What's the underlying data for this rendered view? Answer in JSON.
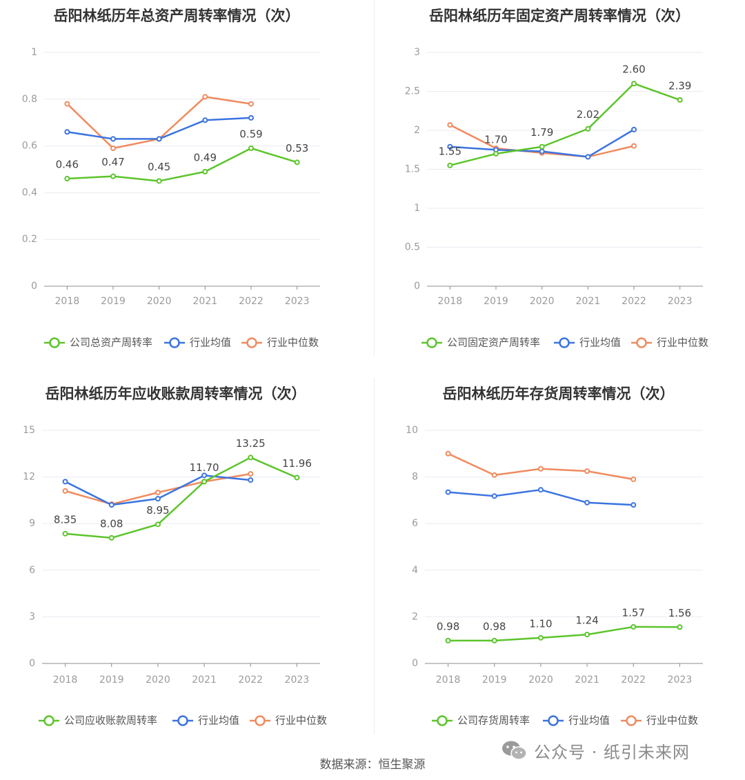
{
  "footer": {
    "source": "数据来源：恒生聚源"
  },
  "watermark": {
    "text": "公众号 · 纸引未来网",
    "icon": "wechat-icon"
  },
  "colors": {
    "company": "#5bc42a",
    "avg": "#3a73e0",
    "median": "#f08a5d",
    "grid": "#e8ebf2",
    "axis": "#9a9a9a",
    "title": "#333333"
  },
  "chart_data": [
    {
      "type": "line",
      "title": "岳阳林纸历年总资产周转率情况（次）",
      "categories": [
        "2018",
        "2019",
        "2020",
        "2021",
        "2022",
        "2023"
      ],
      "ylim": [
        0,
        1
      ],
      "yticks": [
        "0",
        "0.2",
        "0.4",
        "0.6",
        "0.8",
        "1"
      ],
      "ytick_values": [
        0,
        0.2,
        0.4,
        0.6,
        0.8,
        1
      ],
      "series": [
        {
          "name": "公司总资产周转率",
          "values": [
            0.46,
            0.47,
            0.45,
            0.49,
            0.59,
            0.53
          ],
          "labels": [
            "0.46",
            "0.47",
            "0.45",
            "0.49",
            "0.59",
            "0.53"
          ]
        },
        {
          "name": "行业均值",
          "values": [
            0.66,
            0.63,
            0.63,
            0.71,
            0.72,
            null
          ]
        },
        {
          "name": "行业中位数",
          "values": [
            0.78,
            0.59,
            0.63,
            0.81,
            0.78,
            null
          ]
        }
      ],
      "legend": "bottom",
      "grid": true
    },
    {
      "type": "line",
      "title": "岳阳林纸历年固定资产周转率情况（次）",
      "categories": [
        "2018",
        "2019",
        "2020",
        "2021",
        "2022",
        "2023"
      ],
      "ylim": [
        0,
        3
      ],
      "yticks": [
        "0",
        "0.5",
        "1",
        "1.5",
        "2",
        "2.5",
        "3"
      ],
      "ytick_values": [
        0,
        0.5,
        1,
        1.5,
        2,
        2.5,
        3
      ],
      "series": [
        {
          "name": "公司固定资产周转率",
          "values": [
            1.55,
            1.7,
            1.79,
            2.02,
            2.6,
            2.39
          ],
          "labels": [
            "1.55",
            "1.70",
            "1.79",
            "2.02",
            "2.60",
            "2.39"
          ]
        },
        {
          "name": "行业均值",
          "values": [
            1.79,
            1.75,
            1.73,
            1.66,
            2.01,
            null
          ]
        },
        {
          "name": "行业中位数",
          "values": [
            2.07,
            1.77,
            1.71,
            1.66,
            1.8,
            null
          ]
        }
      ],
      "legend": "bottom",
      "grid": true
    },
    {
      "type": "line",
      "title": "岳阳林纸历年应收账款周转率情况（次）",
      "categories": [
        "2018",
        "2019",
        "2020",
        "2021",
        "2022",
        "2023"
      ],
      "ylim": [
        0,
        15
      ],
      "yticks": [
        "0",
        "3",
        "6",
        "9",
        "12",
        "15"
      ],
      "ytick_values": [
        0,
        3,
        6,
        9,
        12,
        15
      ],
      "series": [
        {
          "name": "公司应收账款周转率",
          "values": [
            8.35,
            8.08,
            8.95,
            11.7,
            13.25,
            11.96
          ],
          "labels": [
            "8.35",
            "8.08",
            "8.95",
            "11.70",
            "13.25",
            "11.96"
          ]
        },
        {
          "name": "行业均值",
          "values": [
            11.7,
            10.2,
            10.6,
            12.1,
            11.8,
            null
          ]
        },
        {
          "name": "行业中位数",
          "values": [
            11.1,
            10.25,
            11.0,
            11.7,
            12.2,
            null
          ]
        }
      ],
      "legend": "bottom",
      "grid": true
    },
    {
      "type": "line",
      "title": "岳阳林纸历年存货周转率情况（次）",
      "categories": [
        "2018",
        "2019",
        "2020",
        "2021",
        "2022",
        "2023"
      ],
      "ylim": [
        0,
        10
      ],
      "yticks": [
        "0",
        "2",
        "4",
        "6",
        "8",
        "10"
      ],
      "ytick_values": [
        0,
        2,
        4,
        6,
        8,
        10
      ],
      "series": [
        {
          "name": "公司存货周转率",
          "values": [
            0.98,
            0.98,
            1.1,
            1.24,
            1.57,
            1.56
          ],
          "labels": [
            "0.98",
            "0.98",
            "1.10",
            "1.24",
            "1.57",
            "1.56"
          ]
        },
        {
          "name": "行业均值",
          "values": [
            7.35,
            7.18,
            7.45,
            6.9,
            6.8,
            null
          ]
        },
        {
          "name": "行业中位数",
          "values": [
            9.0,
            8.08,
            8.35,
            8.25,
            7.9,
            null
          ]
        }
      ],
      "legend": "bottom",
      "grid": true
    }
  ]
}
